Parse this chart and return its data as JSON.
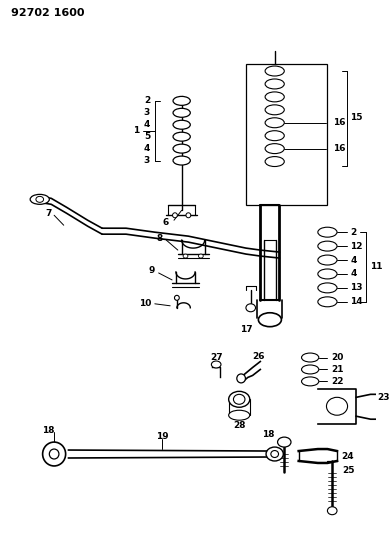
{
  "title": "92702 1600",
  "bg_color": "#ffffff",
  "line_color": "#000000",
  "fig_width": 3.91,
  "fig_height": 5.33,
  "dpi": 100
}
